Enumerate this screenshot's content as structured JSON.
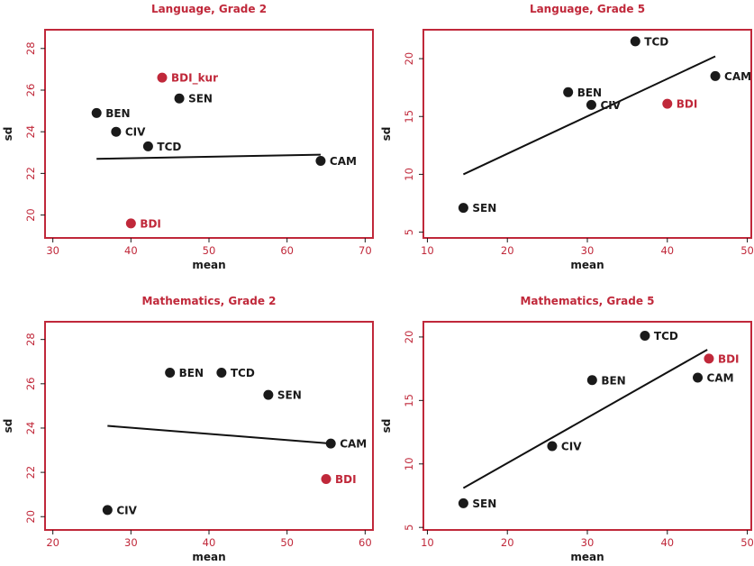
{
  "colors": {
    "accent": "#c0283a",
    "point": "#1a1a1a",
    "highlight": "#c0283a",
    "line": "#111111"
  },
  "chart_data": [
    {
      "type": "scatter",
      "title": "Language, Grade 2",
      "xlabel": "mean",
      "ylabel": "sd",
      "xlim": [
        29,
        71
      ],
      "ylim": [
        18.9,
        28.9
      ],
      "xticks": [
        30,
        40,
        50,
        60,
        70
      ],
      "yticks": [
        20,
        22,
        24,
        26,
        28
      ],
      "points": [
        {
          "label": "BDI_kur",
          "x": 44.0,
          "y": 26.6,
          "highlight": true
        },
        {
          "label": "SEN",
          "x": 46.2,
          "y": 25.6,
          "highlight": false
        },
        {
          "label": "BEN",
          "x": 35.6,
          "y": 24.9,
          "highlight": false
        },
        {
          "label": "CIV",
          "x": 38.1,
          "y": 24.0,
          "highlight": false
        },
        {
          "label": "TCD",
          "x": 42.2,
          "y": 23.3,
          "highlight": false
        },
        {
          "label": "CAM",
          "x": 64.3,
          "y": 22.6,
          "highlight": false
        },
        {
          "label": "BDI",
          "x": 40.0,
          "y": 19.6,
          "highlight": true
        }
      ],
      "fit_line": {
        "x": [
          35.6,
          64.3
        ],
        "y": [
          22.7,
          22.9
        ]
      },
      "grid": false
    },
    {
      "type": "scatter",
      "title": "Language, Grade 5",
      "xlabel": "mean",
      "ylabel": "sd",
      "xlim": [
        9.5,
        50.5
      ],
      "ylim": [
        4.5,
        22.5
      ],
      "xticks": [
        10,
        20,
        30,
        40,
        50
      ],
      "yticks": [
        5,
        10,
        15,
        20
      ],
      "points": [
        {
          "label": "TCD",
          "x": 36.0,
          "y": 21.5,
          "highlight": false
        },
        {
          "label": "CAM",
          "x": 46.0,
          "y": 18.5,
          "highlight": false
        },
        {
          "label": "BEN",
          "x": 27.6,
          "y": 17.1,
          "highlight": false
        },
        {
          "label": "CIV",
          "x": 30.5,
          "y": 16.0,
          "highlight": false
        },
        {
          "label": "BDI",
          "x": 40.0,
          "y": 16.1,
          "highlight": true
        },
        {
          "label": "SEN",
          "x": 14.5,
          "y": 7.1,
          "highlight": false
        }
      ],
      "fit_line": {
        "x": [
          14.5,
          46.0
        ],
        "y": [
          10.0,
          20.2
        ]
      },
      "grid": false
    },
    {
      "type": "scatter",
      "title": "Mathematics, Grade 2",
      "xlabel": "mean",
      "ylabel": "sd",
      "xlim": [
        19,
        61
      ],
      "ylim": [
        19.4,
        28.8
      ],
      "xticks": [
        20,
        30,
        40,
        50,
        60
      ],
      "yticks": [
        20,
        22,
        24,
        26,
        28
      ],
      "points": [
        {
          "label": "BEN",
          "x": 35.0,
          "y": 26.5,
          "highlight": false
        },
        {
          "label": "TCD",
          "x": 41.6,
          "y": 26.5,
          "highlight": false
        },
        {
          "label": "SEN",
          "x": 47.6,
          "y": 25.5,
          "highlight": false
        },
        {
          "label": "CAM",
          "x": 55.6,
          "y": 23.3,
          "highlight": false
        },
        {
          "label": "BDI",
          "x": 55.0,
          "y": 21.7,
          "highlight": true
        },
        {
          "label": "CIV",
          "x": 27.0,
          "y": 20.3,
          "highlight": false
        }
      ],
      "fit_line": {
        "x": [
          27.0,
          55.6
        ],
        "y": [
          24.1,
          23.3
        ]
      },
      "grid": false
    },
    {
      "type": "scatter",
      "title": "Mathematics, Grade 5",
      "xlabel": "mean",
      "ylabel": "sd",
      "xlim": [
        9.5,
        50.5
      ],
      "ylim": [
        4.8,
        21.2
      ],
      "xticks": [
        10,
        20,
        30,
        40,
        50
      ],
      "yticks": [
        5,
        10,
        15,
        20
      ],
      "points": [
        {
          "label": "TCD",
          "x": 37.2,
          "y": 20.1,
          "highlight": false
        },
        {
          "label": "BDI",
          "x": 45.2,
          "y": 18.3,
          "highlight": true
        },
        {
          "label": "CAM",
          "x": 43.8,
          "y": 16.8,
          "highlight": false
        },
        {
          "label": "BEN",
          "x": 30.6,
          "y": 16.6,
          "highlight": false
        },
        {
          "label": "CIV",
          "x": 25.6,
          "y": 11.4,
          "highlight": false
        },
        {
          "label": "SEN",
          "x": 14.5,
          "y": 6.9,
          "highlight": false
        }
      ],
      "fit_line": {
        "x": [
          14.5,
          45.0
        ],
        "y": [
          8.1,
          19.0
        ]
      },
      "grid": false
    }
  ]
}
